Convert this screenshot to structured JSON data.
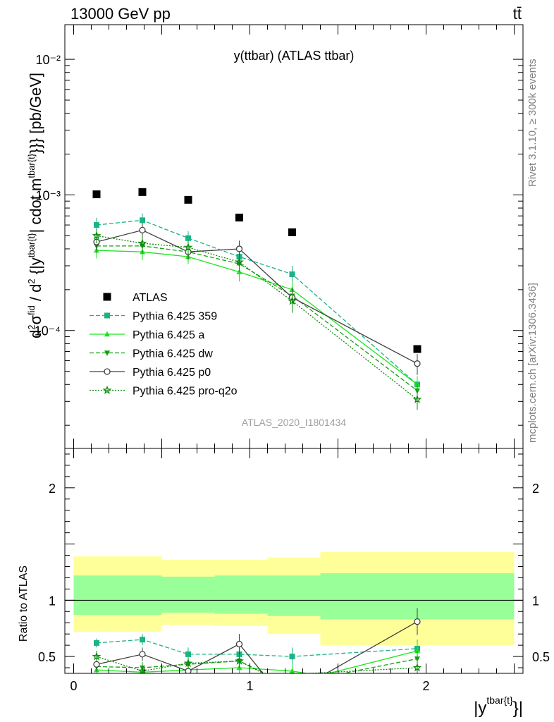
{
  "header": {
    "left": "13000 GeV pp",
    "right": "tt̄",
    "side_top": "Rivet 3.1.10, ≥ 300k events",
    "side_bottom": "mcplots.cern.ch [arXiv:1306.3436]"
  },
  "colors": {
    "atlas": "#000000",
    "p359": "#1ab386",
    "pa": "#19e619",
    "pdw": "#12a112",
    "pp0": "#404040",
    "pq2o": "#0c8a0c",
    "band_outer": "#ffff99",
    "band_inner": "#99ff99"
  },
  "chart_data": [
    {
      "type": "line",
      "title": "y(ttbar) (ATLAS ttbar)",
      "watermark": "ATLAS_2020_I1801434",
      "ylabel": "d²σ^fid / d²{|y^tbar{t}| cdot m^tbar{t}}} [pb/GeV]",
      "yscale": "log",
      "ylim": [
        1.35e-05,
        0.018
      ],
      "xlim": [
        -0.05,
        2.55
      ],
      "y_ticks": [
        {
          "value": 0.01,
          "label": "10⁻²"
        },
        {
          "value": 0.001,
          "label": "10⁻³"
        },
        {
          "value": 0.0001,
          "label": "10⁻⁴"
        }
      ],
      "series": [
        {
          "name": "ATLAS",
          "style": "data",
          "x": [
            0.13,
            0.39,
            0.65,
            0.94,
            1.24,
            1.95
          ],
          "y": [
            0.00101,
            0.00105,
            0.00092,
            0.00068,
            0.00053,
            7.3e-05
          ],
          "err": [
            0,
            0,
            0,
            0,
            0,
            0
          ]
        },
        {
          "name": "Pythia 6.425 359",
          "style": "dashed-square",
          "x": [
            0.13,
            0.39,
            0.65,
            0.94,
            1.24,
            1.95
          ],
          "y": [
            0.0006,
            0.00065,
            0.00048,
            0.00035,
            0.00026,
            4e-05
          ],
          "err": [
            8e-05,
            8e-05,
            6e-05,
            5e-05,
            4e-05,
            6e-06
          ]
        },
        {
          "name": "Pythia 6.425 a",
          "style": "solid-triangle",
          "x": [
            0.13,
            0.39,
            0.65,
            0.94,
            1.24,
            1.95
          ],
          "y": [
            0.00039,
            0.00038,
            0.00035,
            0.00027,
            0.0002,
            4e-05
          ],
          "err": [
            5e-05,
            5e-05,
            4e-05,
            4e-05,
            3e-05,
            6e-06
          ]
        },
        {
          "name": "Pythia 6.425 dw",
          "style": "dashed-tridown",
          "x": [
            0.13,
            0.39,
            0.65,
            0.94,
            1.24,
            1.95
          ],
          "y": [
            0.00042,
            0.00042,
            0.00038,
            0.00031,
            0.00018,
            3.6e-05
          ],
          "err": [
            5e-05,
            5e-05,
            5e-05,
            4e-05,
            3e-05,
            5e-06
          ]
        },
        {
          "name": "Pythia 6.425 p0",
          "style": "solid-circle",
          "x": [
            0.13,
            0.39,
            0.65,
            0.94,
            1.24,
            1.95
          ],
          "y": [
            0.00045,
            0.00055,
            0.00038,
            0.0004,
            0.000175,
            5.7e-05
          ],
          "err": [
            6e-05,
            7e-05,
            5e-05,
            6e-05,
            3e-05,
            1e-05
          ]
        },
        {
          "name": "Pythia 6.425 pro-q2o",
          "style": "dotted-star",
          "x": [
            0.13,
            0.39,
            0.65,
            0.94,
            1.24,
            1.95
          ],
          "y": [
            0.0005,
            0.00044,
            0.00041,
            0.00032,
            0.000165,
            3.1e-05
          ],
          "err": [
            6e-05,
            6e-05,
            5e-05,
            4e-05,
            3e-05,
            5e-06
          ]
        }
      ],
      "legend_position": "center-left"
    },
    {
      "type": "line",
      "ylabel": "Ratio to ATLAS",
      "xlabel": "|y^tbar{t}}|",
      "ylim": [
        0.35,
        2.35
      ],
      "xlim": [
        -0.05,
        2.55
      ],
      "x_ticks": [
        {
          "value": 0,
          "label": "0"
        },
        {
          "value": 1,
          "label": "1"
        },
        {
          "value": 2,
          "label": "2"
        }
      ],
      "y_ticks": [
        {
          "value": 0.5,
          "label": "0.5"
        },
        {
          "value": 1,
          "label": "1"
        },
        {
          "value": 2,
          "label": "2"
        }
      ],
      "bands": [
        {
          "x0": 0.0,
          "x1": 0.5,
          "outer": [
            0.72,
            1.39
          ],
          "inner": [
            0.87,
            1.22
          ]
        },
        {
          "x0": 0.5,
          "x1": 0.8,
          "outer": [
            0.78,
            1.36
          ],
          "inner": [
            0.89,
            1.21
          ]
        },
        {
          "x0": 0.8,
          "x1": 1.1,
          "outer": [
            0.77,
            1.36
          ],
          "inner": [
            0.88,
            1.22
          ]
        },
        {
          "x0": 1.1,
          "x1": 1.4,
          "outer": [
            0.7,
            1.38
          ],
          "inner": [
            0.86,
            1.22
          ]
        },
        {
          "x0": 1.4,
          "x1": 2.5,
          "outer": [
            0.6,
            1.43
          ],
          "inner": [
            0.83,
            1.24
          ]
        }
      ],
      "series": [
        {
          "name": "Pythia 6.425 359",
          "x": [
            0.13,
            0.39,
            0.65,
            0.94,
            1.24,
            1.95
          ],
          "y": [
            0.62,
            0.65,
            0.52,
            0.52,
            0.5,
            0.57
          ],
          "err": [
            0.04,
            0.05,
            0.06,
            0.06,
            0.08,
            0.08
          ]
        },
        {
          "name": "Pythia 6.425 a",
          "x": [
            0.13,
            0.39,
            0.65,
            0.94,
            1.24,
            1.4,
            1.95
          ],
          "y": [
            0.38,
            0.36,
            0.38,
            0.4,
            0.37,
            0.33,
            0.55
          ],
          "err": [
            0.05,
            0.05,
            0.05,
            0.06,
            0.06,
            0,
            0.08
          ]
        },
        {
          "name": "Pythia 6.425 dw",
          "x": [
            0.13,
            0.39,
            0.65,
            0.94,
            1.1,
            1.4,
            1.95
          ],
          "y": [
            0.41,
            0.4,
            0.43,
            0.46,
            0.34,
            0.31,
            0.48
          ],
          "err": [
            0.05,
            0.05,
            0.05,
            0.06,
            0,
            0,
            0.07
          ]
        },
        {
          "name": "Pythia 6.425 p0",
          "x": [
            0.13,
            0.39,
            0.65,
            0.94,
            1.1,
            1.4,
            1.95
          ],
          "y": [
            0.43,
            0.52,
            0.37,
            0.61,
            0.3,
            0.32,
            0.81
          ],
          "err": [
            0.05,
            0.06,
            0.05,
            0.09,
            0,
            0,
            0.12
          ]
        },
        {
          "name": "Pythia 6.425 pro-q2o",
          "x": [
            0.13,
            0.39,
            0.65,
            0.94,
            1.1,
            1.95
          ],
          "y": [
            0.5,
            0.37,
            0.44,
            0.46,
            0.33,
            0.4
          ],
          "err": [
            0.05,
            0.05,
            0.05,
            0.06,
            0,
            0.06
          ]
        }
      ]
    }
  ]
}
